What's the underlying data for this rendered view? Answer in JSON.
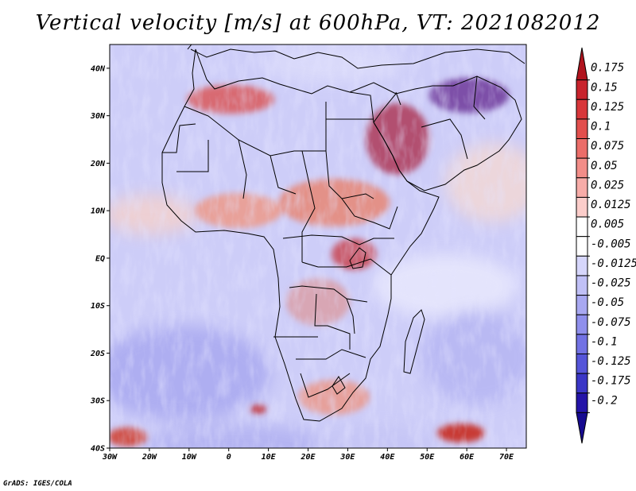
{
  "title": "Vertical velocity [m/s] at 600hPa, VT: 2021082012",
  "credit": "GrADS: IGES/COLA",
  "map": {
    "lon_range": [
      -30,
      75
    ],
    "lat_range": [
      -40,
      45
    ],
    "lon_ticks": [
      "30W",
      "20W",
      "10W",
      "0",
      "10E",
      "20E",
      "30E",
      "40E",
      "50E",
      "60E",
      "70E"
    ],
    "lat_ticks": [
      "40N",
      "30N",
      "20N",
      "10N",
      "EQ",
      "10S",
      "20S",
      "30S",
      "40S"
    ],
    "outline_color": "#000000"
  },
  "colorbar": {
    "labels": [
      "0.175",
      "0.15",
      "0.125",
      "0.1",
      "0.075",
      "0.05",
      "0.025",
      "0.0125",
      "0.005",
      "-0.005",
      "-0.0125",
      "-0.025",
      "-0.05",
      "-0.075",
      "-0.1",
      "-0.125",
      "-0.175",
      "-0.2"
    ],
    "colors": [
      "#b0141e",
      "#c8232c",
      "#d8363a",
      "#e24f4d",
      "#eb6d69",
      "#f28d88",
      "#f7aca8",
      "#fbcdca",
      "#ffffff",
      "#ffffff",
      "#d6d6fb",
      "#c0c0f6",
      "#a8a8f1",
      "#8f8fec",
      "#7272e4",
      "#5555d9",
      "#3a36c6",
      "#2414a8",
      "#160a90"
    ]
  }
}
